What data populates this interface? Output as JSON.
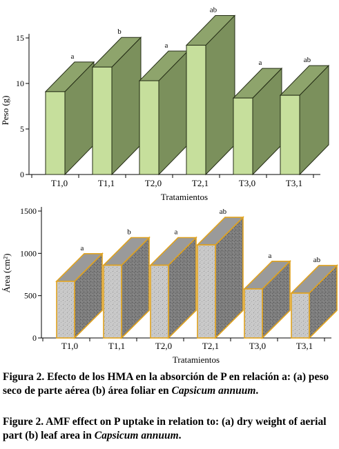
{
  "charts_meta": {
    "a": {
      "ylabel": "Peso (g)",
      "xlabel": "Tratamientos"
    },
    "b": {
      "ylabel": "Área (cm²)",
      "xlabel": "Tratamientos"
    }
  },
  "chart_data": [
    {
      "type": "bar",
      "panel": "a",
      "title": "",
      "xlabel": "Tratamientos",
      "ylabel": "Peso (g)",
      "categories": [
        "T1,0",
        "T1,1",
        "T2,0",
        "T2,1",
        "T3,0",
        "T3,1"
      ],
      "values": [
        9.1,
        11.8,
        10.3,
        14.2,
        8.4,
        8.7
      ],
      "letters": [
        "a",
        "b",
        "a",
        "ab",
        "a",
        "ab"
      ],
      "ylim": [
        0,
        15
      ],
      "yticks": [
        0,
        5,
        10,
        15
      ],
      "style": "3d",
      "colors": {
        "front": "#c6df9c",
        "side": "#7b905c",
        "top": "#8ea46c",
        "edge": "#232b14"
      }
    },
    {
      "type": "bar",
      "panel": "b",
      "title": "",
      "xlabel": "Tratamientos",
      "ylabel": "Área (cm²)",
      "categories": [
        "T1,0",
        "T1,1",
        "T2,0",
        "T2,1",
        "T3,0",
        "T3,1"
      ],
      "values": [
        670,
        860,
        860,
        1100,
        580,
        530
      ],
      "letters": [
        "a",
        "b",
        "a",
        "ab",
        "a",
        "ab"
      ],
      "ylim": [
        0,
        1500
      ],
      "yticks": [
        0,
        500,
        1000,
        1500
      ],
      "style": "3d-textured",
      "colors": {
        "front": "#c9c9c9",
        "side": "#7e7e7e",
        "top": "#9a9a9a",
        "edge": "#e0a21e"
      }
    }
  ],
  "captions": {
    "es": {
      "label": "Figura 2.",
      "text_before": "Efecto de los HMA en la absorción de P en relación a: (a) peso seco de parte aérea (b) área foliar en ",
      "italic": "Capsicum annuum",
      "text_after": "."
    },
    "en": {
      "label": "Figure 2.",
      "text_before": "AMF effect on P uptake in relation to: (a) dry weight of aerial part (b) leaf area in ",
      "italic": "Capsicum annuum",
      "text_after": "."
    }
  }
}
